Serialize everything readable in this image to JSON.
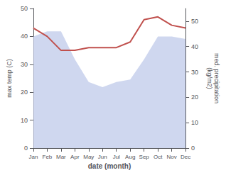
{
  "chart_data": {
    "type": "line",
    "categories": [
      "Jan",
      "Feb",
      "Mar",
      "Apr",
      "May",
      "Jun",
      "Jul",
      "Aug",
      "Sep",
      "Oct",
      "Nov",
      "Dec"
    ],
    "xlabel": "date (month)",
    "ylabel": "max temp (C)",
    "y2label": "med. precipitation\n(kg/m2)",
    "ylim": [
      0,
      50
    ],
    "yticks": [
      0,
      10,
      20,
      30,
      40,
      50
    ],
    "y2lim": [
      0,
      55
    ],
    "y2ticks": [
      0,
      10,
      20,
      30,
      40,
      50
    ],
    "grid": false,
    "series": [
      {
        "type": "area",
        "axis": "y2",
        "color": "#bfc9ea",
        "values": [
          44,
          46,
          46,
          35,
          26,
          24,
          26,
          27,
          35,
          44,
          44,
          43
        ]
      },
      {
        "type": "line",
        "color": "#c0504d",
        "values": [
          43,
          40,
          35,
          35,
          36,
          36,
          36,
          38,
          46,
          47,
          44,
          43
        ]
      }
    ]
  }
}
